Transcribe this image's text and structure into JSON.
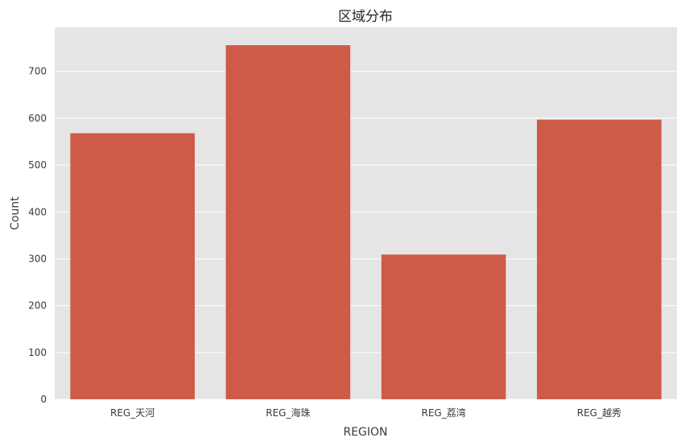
{
  "chart_data": {
    "type": "bar",
    "title": "区域分布",
    "xlabel": "REGION",
    "ylabel": "Count",
    "categories": [
      "REG_天河",
      "REG_海珠",
      "REG_荔湾",
      "REG_越秀"
    ],
    "values": [
      568,
      756,
      309,
      597
    ],
    "ylim": [
      0,
      794
    ],
    "yticks": [
      0,
      100,
      200,
      300,
      400,
      500,
      600,
      700
    ],
    "grid": true,
    "legend": "none",
    "bar_color": "#cd5b48",
    "background_color": "#e5e5e5",
    "grid_color": "#ffffff"
  }
}
